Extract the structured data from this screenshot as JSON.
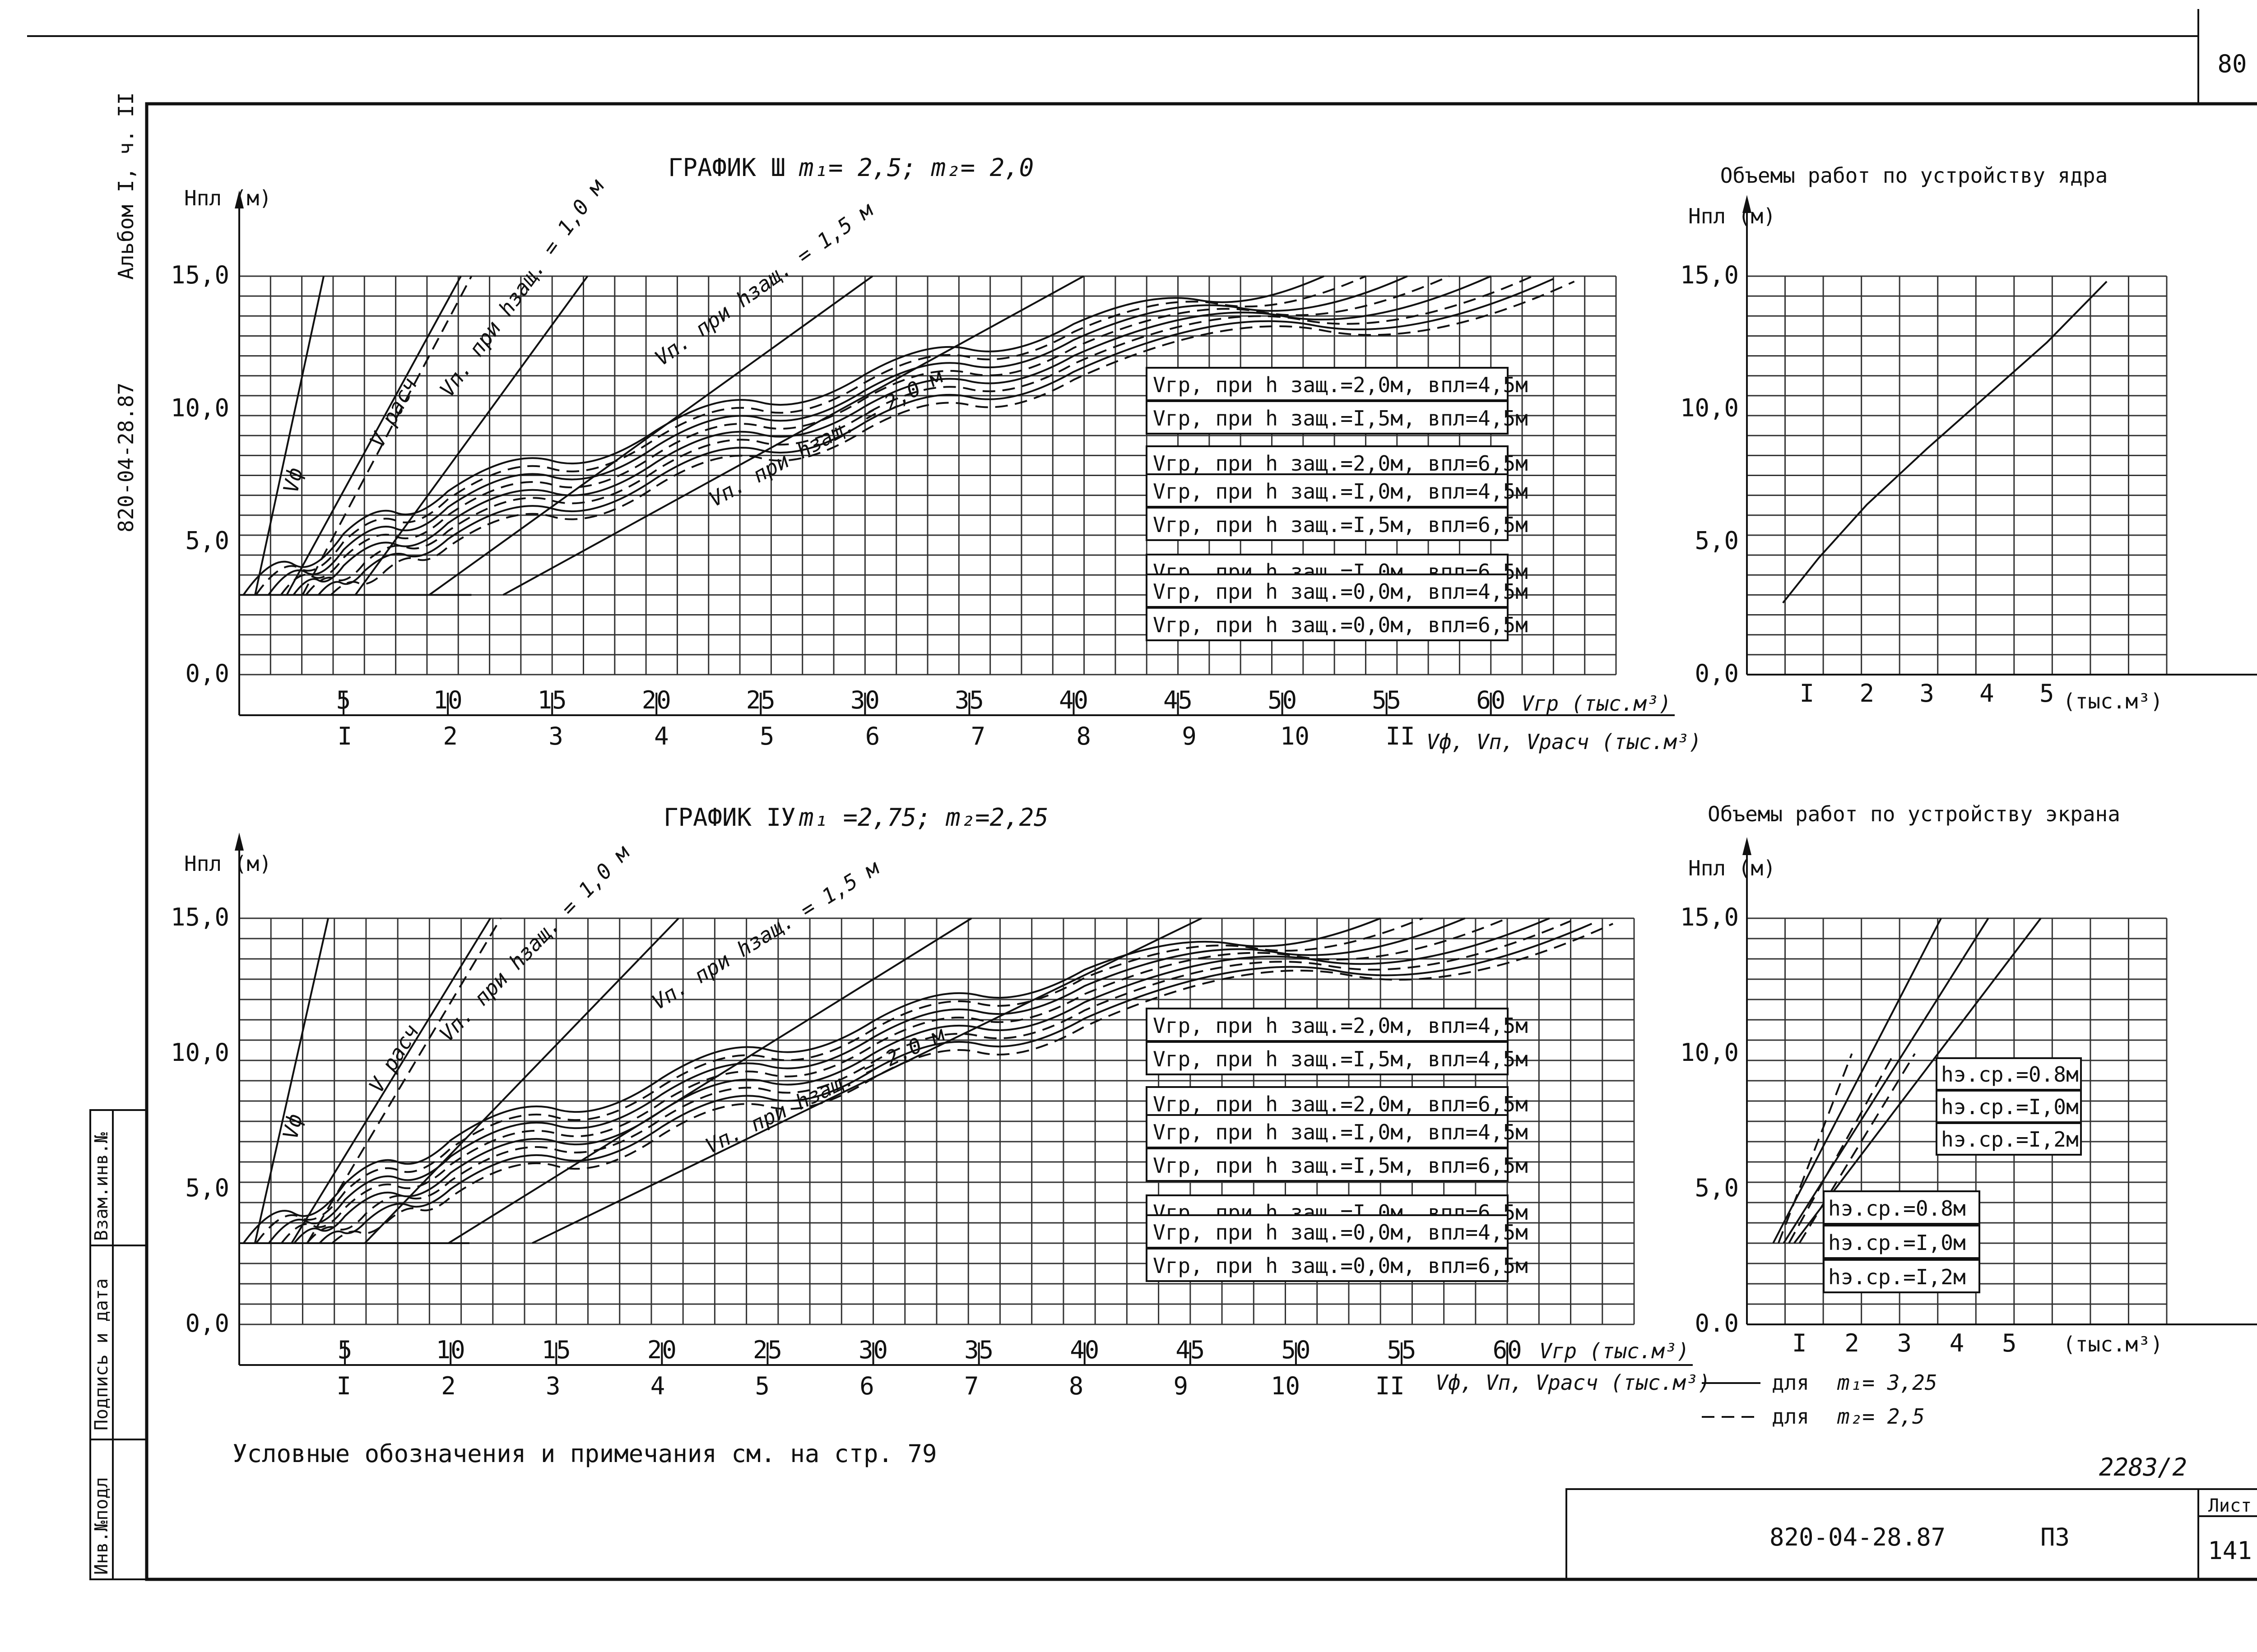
{
  "page_number": "80",
  "side_stamp": {
    "album": "Альбом I, ч. II",
    "code": "820-04-28.87",
    "box_labels": [
      "Взам.инв.№",
      "Подпись и дата",
      "Инв.№подл"
    ]
  },
  "title_block": {
    "code": "820-04-28.87",
    "section": "ПЗ",
    "sheet_label": "Лист",
    "sheet_number": "141",
    "handwritten_note": "2283/2"
  },
  "footnote": "Условные обозначения и примечания см. на стр. 79",
  "bottom_legend": {
    "solid": {
      "text": "для",
      "param": "m₁= 3,25"
    },
    "dashed": {
      "text": "для",
      "param": "m₂= 2,5"
    }
  },
  "chart_data": [
    {
      "id": "graph3",
      "type": "line",
      "title": "ГРАФИК Ш",
      "params": "m₁= 2,5;     m₂= 2,0",
      "ylabel": "Нпл (м)",
      "yticks": [
        "0,0",
        "5,0",
        "10,0",
        "15,0"
      ],
      "ytick_values": [
        0,
        5,
        10,
        15
      ],
      "ylim": [
        0,
        15
      ],
      "x1_label": "Vгр (тыс.м³)",
      "x1_ticks": [
        "5",
        "10",
        "15",
        "20",
        "25",
        "30",
        "35",
        "40",
        "45",
        "50",
        "55",
        "60"
      ],
      "x1_values": [
        5,
        10,
        15,
        20,
        25,
        30,
        35,
        40,
        45,
        50,
        55,
        60
      ],
      "x1_lim": [
        0,
        66
      ],
      "x2_label": "Vф, Vп, Vрасч (тыс.м³)",
      "x2_ticks": [
        "I",
        "2",
        "3",
        "4",
        "5",
        "6",
        "7",
        "8",
        "9",
        "10",
        "II"
      ],
      "x2_values": [
        1,
        2,
        3,
        4,
        5,
        6,
        7,
        8,
        9,
        10,
        11
      ],
      "line_labels": {
        "vf": "Vф",
        "vras": "V расч",
        "vp10": "Vп. при hзащ. = 1,0 м",
        "vp15": "Vп. при hзащ. = 1,5 м",
        "vp20": "Vп. при hзащ. = 2,0 м"
      },
      "straight_lines": [
        {
          "name": "vf",
          "x2": [
            0.15,
            0.8
          ],
          "y": [
            3.0,
            15.0
          ],
          "dashed": false
        },
        {
          "name": "vras",
          "x2": [
            0.45,
            2.1
          ],
          "y": [
            3.0,
            15.0
          ],
          "dashed": false
        },
        {
          "name": "vras-dash",
          "x2": [
            0.6,
            2.2
          ],
          "y": [
            3.0,
            15.0
          ],
          "dashed": true
        },
        {
          "name": "vp10",
          "x2": [
            1.1,
            3.3
          ],
          "y": [
            3.0,
            15.0
          ],
          "dashed": false
        },
        {
          "name": "vp15",
          "x2": [
            1.8,
            6.0
          ],
          "y": [
            3.0,
            15.0
          ],
          "dashed": false
        },
        {
          "name": "vp20",
          "x2": [
            2.5,
            8.0
          ],
          "y": [
            3.0,
            15.0
          ],
          "dashed": false
        }
      ],
      "series": [
        {
          "name": "Vгр, при hзащ.=2,0м, вплс=4,5м",
          "x": [
            0.2,
            5,
            10,
            20,
            30,
            40,
            52
          ],
          "y": [
            3.0,
            5.3,
            6.9,
            9.2,
            11.3,
            13.2,
            15.0
          ],
          "dashed": false
        },
        {
          "name": "Vгр, при hзащ.=I,5м, вплс=4,5м",
          "x": [
            0.8,
            5,
            10,
            20,
            30,
            40,
            54
          ],
          "y": [
            3.0,
            5.0,
            6.6,
            8.9,
            11.0,
            12.9,
            15.0
          ],
          "dashed": true
        },
        {
          "name": "Vгр, при hзащ.=2,0м, вплс=6,5м",
          "x": [
            1.4,
            5,
            10,
            20,
            30,
            40,
            56
          ],
          "y": [
            3.0,
            4.7,
            6.3,
            8.6,
            10.7,
            12.6,
            15.0
          ],
          "dashed": false
        },
        {
          "name": "Vгр, при hзащ.=I,0м, вплс=4,5м",
          "x": [
            2.0,
            5,
            10,
            20,
            30,
            40,
            58
          ],
          "y": [
            3.0,
            4.4,
            6.0,
            8.3,
            10.4,
            12.3,
            15.0
          ],
          "dashed": true
        },
        {
          "name": "Vгр, при hзащ.=I,5м, вплс=6,5м",
          "x": [
            2.6,
            5,
            10,
            20,
            30,
            40,
            60
          ],
          "y": [
            3.0,
            4.1,
            5.7,
            8.0,
            10.1,
            12.0,
            15.0
          ],
          "dashed": false
        },
        {
          "name": "Vгр, при hзащ.=I,0м, вплс=6,5м",
          "x": [
            3.2,
            6,
            10,
            20,
            30,
            40,
            62
          ],
          "y": [
            3.0,
            4.2,
            5.4,
            7.7,
            9.8,
            11.7,
            15.0
          ],
          "dashed": true
        },
        {
          "name": "Vгр, при hзащ.=0,0м, вплс=4,5м",
          "x": [
            3.8,
            6,
            10,
            20,
            30,
            40,
            63
          ],
          "y": [
            3.0,
            3.9,
            5.1,
            7.4,
            9.5,
            11.4,
            14.9
          ],
          "dashed": false
        },
        {
          "name": "Vгр, при hзащ.=0,0м, вплс=6,5м",
          "x": [
            4.4,
            7,
            10,
            20,
            30,
            40,
            64
          ],
          "y": [
            3.0,
            3.9,
            4.8,
            7.1,
            9.2,
            11.1,
            14.8
          ],
          "dashed": true
        }
      ],
      "legend": [
        "Vгр, при h защ.=2,0м, впл=4,5м",
        "Vгр, при h защ.=I,5м, впл=4,5м",
        "Vгр, при h защ.=2,0м, впл=6,5м",
        "Vгр, при h защ.=I,0м, впл=4,5м",
        "Vгр, при h защ.=I,5м, впл=6,5м",
        "Vгр, при h защ.=I,0м, впл=6,5м",
        "Vгр, при h защ.=0,0м, впл=4,5м",
        "Vгр, при h защ.=0,0м, впл=6,5м"
      ]
    },
    {
      "id": "graph4",
      "type": "line",
      "title": "ГРАФИК IУ",
      "params": "m₁ =2,75;     m₂=2,25",
      "ylabel": "Нпл (м)",
      "yticks": [
        "0,0",
        "5,0",
        "10,0",
        "15,0"
      ],
      "ytick_values": [
        0,
        5,
        10,
        15
      ],
      "ylim": [
        0,
        15
      ],
      "x1_label": "Vгр (тыс.м³)",
      "x1_ticks": [
        "5",
        "10",
        "15",
        "20",
        "25",
        "30",
        "35",
        "40",
        "45",
        "50",
        "55",
        "60"
      ],
      "x1_values": [
        5,
        10,
        15,
        20,
        25,
        30,
        35,
        40,
        45,
        50,
        55,
        60
      ],
      "x1_lim": [
        0,
        66
      ],
      "x2_label": "Vф, Vп, Vрасч (тыс.м³)",
      "x2_ticks": [
        "I",
        "2",
        "3",
        "4",
        "5",
        "6",
        "7",
        "8",
        "9",
        "10",
        "II"
      ],
      "x2_values": [
        1,
        2,
        3,
        4,
        5,
        6,
        7,
        8,
        9,
        10,
        11
      ],
      "line_labels": {
        "vf": "Vф",
        "vras": "V расч",
        "vp10": "Vп. при hзащ. = 1,0 м",
        "vp15": "Vп. при hзащ. = 1,5 м",
        "vp20": "Vп. при hзащ. = 2,0 м"
      },
      "straight_lines": [
        {
          "name": "vf",
          "x2": [
            0.15,
            0.85
          ],
          "y": [
            3.0,
            15.0
          ],
          "dashed": false
        },
        {
          "name": "vras",
          "x2": [
            0.5,
            2.4
          ],
          "y": [
            3.0,
            15.0
          ],
          "dashed": false
        },
        {
          "name": "vras-dash",
          "x2": [
            0.65,
            2.5
          ],
          "y": [
            3.0,
            15.0
          ],
          "dashed": true
        },
        {
          "name": "vp10",
          "x2": [
            1.2,
            4.2
          ],
          "y": [
            3.0,
            15.0
          ],
          "dashed": false
        },
        {
          "name": "vp15",
          "x2": [
            2.0,
            7.0
          ],
          "y": [
            3.0,
            15.0
          ],
          "dashed": false
        },
        {
          "name": "vp20",
          "x2": [
            2.8,
            9.2
          ],
          "y": [
            3.0,
            15.0
          ],
          "dashed": false
        }
      ],
      "series": [
        {
          "name": "Vгр, при hзащ.=2,0м, вплс=4,5м",
          "x": [
            0.2,
            5,
            10,
            20,
            30,
            40,
            54
          ],
          "y": [
            3.0,
            5.2,
            6.8,
            9.1,
            11.2,
            13.1,
            15.0
          ],
          "dashed": false
        },
        {
          "name": "Vгр, при hзащ.=I,5м, вплс=4,5м",
          "x": [
            0.8,
            5,
            10,
            20,
            30,
            40,
            56
          ],
          "y": [
            3.0,
            4.9,
            6.5,
            8.8,
            10.9,
            12.8,
            15.0
          ],
          "dashed": true
        },
        {
          "name": "Vгр, при hзащ.=2,0м, вплс=6,5м",
          "x": [
            1.4,
            5,
            10,
            20,
            30,
            40,
            58
          ],
          "y": [
            3.0,
            4.6,
            6.2,
            8.5,
            10.6,
            12.5,
            15.0
          ],
          "dashed": false
        },
        {
          "name": "Vгр, при hзащ.=I,0м, вплс=4,5м",
          "x": [
            2.0,
            5,
            10,
            20,
            30,
            40,
            60
          ],
          "y": [
            3.0,
            4.3,
            5.9,
            8.2,
            10.3,
            12.2,
            15.0
          ],
          "dashed": true
        },
        {
          "name": "Vгр, при hзащ.=I,5м, вплс=6,5м",
          "x": [
            2.6,
            5,
            10,
            20,
            30,
            40,
            62
          ],
          "y": [
            3.0,
            4.0,
            5.6,
            7.9,
            10.0,
            11.9,
            15.0
          ],
          "dashed": false
        },
        {
          "name": "Vгр, при hзащ.=I,0м, вплс=6,5м",
          "x": [
            3.2,
            6,
            10,
            20,
            30,
            40,
            63
          ],
          "y": [
            3.0,
            4.1,
            5.3,
            7.6,
            9.7,
            11.6,
            14.9
          ],
          "dashed": true
        },
        {
          "name": "Vгр, при hзащ.=0,0м, вплс=4,5м",
          "x": [
            3.8,
            6,
            10,
            20,
            30,
            40,
            64
          ],
          "y": [
            3.0,
            3.8,
            5.0,
            7.3,
            9.4,
            11.3,
            14.8
          ],
          "dashed": false
        },
        {
          "name": "Vгр, при hзащ.=0,0м, вплс=6,5м",
          "x": [
            4.4,
            7,
            10,
            20,
            30,
            40,
            65
          ],
          "y": [
            3.0,
            3.8,
            4.7,
            7.0,
            9.1,
            11.0,
            14.8
          ],
          "dashed": true
        }
      ],
      "legend": [
        "Vгр, при h защ.=2,0м, впл=4,5м",
        "Vгр, при h защ.=I,5м, впл=4,5м",
        "Vгр, при h защ.=2,0м, впл=6,5м",
        "Vгр, при h защ.=I,0м, впл=4,5м",
        "Vгр, при h защ.=I,5м, впл=6,5м",
        "Vгр, при h защ.=I,0м, впл=6,5м",
        "Vгр, при h защ.=0,0м, впл=4,5м",
        "Vгр, при h защ.=0,0м, впл=6,5м"
      ]
    },
    {
      "id": "core",
      "type": "line",
      "title": "Объемы работ по устройству ядра",
      "ylabel": "Нпл (м)",
      "yticks": [
        "0,0",
        "5,0",
        "10,0",
        "15,0"
      ],
      "ytick_values": [
        0,
        5,
        10,
        15
      ],
      "ylim": [
        0,
        15
      ],
      "xlabel": "(тыс.м³)",
      "xticks": [
        "I",
        "2",
        "3",
        "4",
        "5"
      ],
      "xtick_values": [
        1,
        2,
        3,
        4,
        5
      ],
      "xlim": [
        0,
        7
      ],
      "series": [
        {
          "name": "core",
          "x": [
            0.6,
            1.2,
            2.0,
            3.0,
            4.0,
            5.0,
            6.0
          ],
          "y": [
            2.7,
            4.4,
            6.4,
            8.5,
            10.5,
            12.5,
            14.8
          ],
          "dashed": false
        }
      ]
    },
    {
      "id": "screen",
      "type": "line",
      "title": "Объемы работ по устройству экрана",
      "ylabel": "Нпл (м)",
      "yticks": [
        "0.0",
        "5,0",
        "10,0",
        "15,0"
      ],
      "ytick_values": [
        0,
        5,
        10,
        15
      ],
      "ylim": [
        0,
        15
      ],
      "xlabel": "(тыс.м³)",
      "xticks": [
        "I",
        "2",
        "3",
        "4",
        "5"
      ],
      "xtick_values": [
        1,
        2,
        3,
        4,
        5
      ],
      "xlim": [
        0,
        8
      ],
      "series": [
        {
          "name": "hэ.ср.=0.8м",
          "x": [
            0.5,
            3.7
          ],
          "y": [
            3.0,
            15.0
          ],
          "dashed": false
        },
        {
          "name": "hэ.ср.=I,0м",
          "x": [
            0.7,
            4.6
          ],
          "y": [
            3.0,
            15.0
          ],
          "dashed": false
        },
        {
          "name": "hэ.ср.=I,2м",
          "x": [
            0.9,
            5.6
          ],
          "y": [
            3.0,
            15.0
          ],
          "dashed": false
        },
        {
          "name": "d1",
          "x": [
            0.6,
            2.0
          ],
          "y": [
            3.0,
            10.0
          ],
          "dashed": true
        },
        {
          "name": "d2",
          "x": [
            0.8,
            2.8
          ],
          "y": [
            3.0,
            10.0
          ],
          "dashed": true
        },
        {
          "name": "d3",
          "x": [
            1.0,
            3.2
          ],
          "y": [
            3.0,
            10.0
          ],
          "dashed": true
        }
      ],
      "legend_top": [
        "hэ.ср.=0.8м",
        "hэ.ср.=I,0м",
        "hэ.ср.=I,2м"
      ],
      "legend_bottom": [
        "hэ.ср.=0.8м",
        "hэ.ср.=I,0м",
        "hэ.ср.=I,2м"
      ]
    }
  ]
}
